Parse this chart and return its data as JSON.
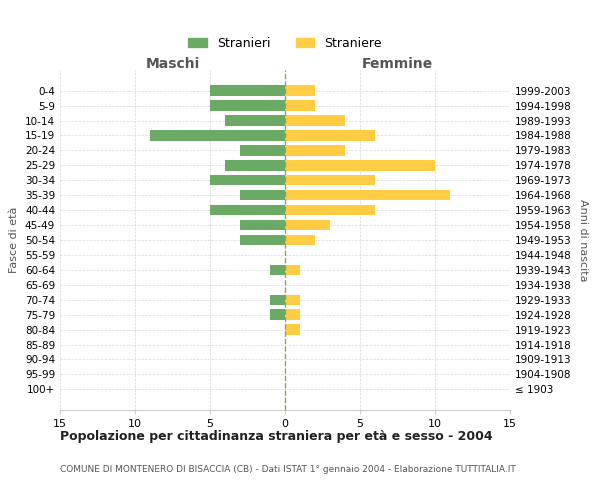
{
  "age_groups": [
    "100+",
    "95-99",
    "90-94",
    "85-89",
    "80-84",
    "75-79",
    "70-74",
    "65-69",
    "60-64",
    "55-59",
    "50-54",
    "45-49",
    "40-44",
    "35-39",
    "30-34",
    "25-29",
    "20-24",
    "15-19",
    "10-14",
    "5-9",
    "0-4"
  ],
  "birth_years": [
    "≤ 1903",
    "1904-1908",
    "1909-1913",
    "1914-1918",
    "1919-1923",
    "1924-1928",
    "1929-1933",
    "1934-1938",
    "1939-1943",
    "1944-1948",
    "1949-1953",
    "1954-1958",
    "1959-1963",
    "1964-1968",
    "1969-1973",
    "1974-1978",
    "1979-1983",
    "1984-1988",
    "1989-1993",
    "1994-1998",
    "1999-2003"
  ],
  "maschi": [
    0,
    0,
    0,
    0,
    0,
    1,
    1,
    0,
    1,
    0,
    3,
    3,
    5,
    3,
    5,
    4,
    3,
    9,
    4,
    5,
    5
  ],
  "femmine": [
    0,
    0,
    0,
    0,
    1,
    1,
    1,
    0,
    1,
    0,
    2,
    3,
    6,
    11,
    6,
    10,
    4,
    6,
    4,
    2,
    2
  ],
  "color_maschi": "#6aaa64",
  "color_femmine": "#ffcc44",
  "title_main": "Popolazione per cittadinanza straniera per età e sesso - 2004",
  "subtitle": "COMUNE DI MONTENERO DI BISACCIA (CB) - Dati ISTAT 1° gennaio 2004 - Elaborazione TUTTITALIA.IT",
  "xlabel_left": "Maschi",
  "xlabel_right": "Femmine",
  "ylabel_left": "Fasce di età",
  "ylabel_right": "Anni di nascita",
  "legend_maschi": "Stranieri",
  "legend_femmine": "Straniere",
  "xlim": 15,
  "background_color": "#ffffff",
  "grid_color": "#cccccc",
  "dashed_line_color": "#999966"
}
